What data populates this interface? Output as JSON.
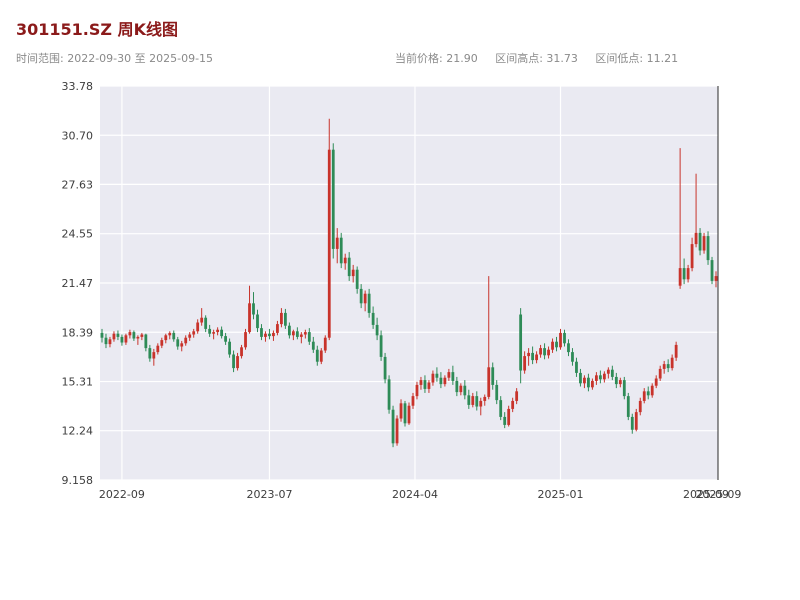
{
  "header": {
    "title": "301151.SZ 周K线图",
    "title_color": "#8b1a1a",
    "time_range": "时间范围: 2022-09-30 至 2025-09-15",
    "stats": [
      "当前价格: 21.90",
      "区间高点: 31.73",
      "区间低点: 11.21"
    ]
  },
  "chart_data": {
    "type": "candlestick",
    "symbol": "301151.SZ",
    "title": "301151.SZ 周K线图",
    "freq": "weekly",
    "start_date": "2022-09-30",
    "end_date": "2025-09-15",
    "current_price": 21.9,
    "range_high": 31.73,
    "range_low": 11.21,
    "up_color": "#c8332b",
    "down_color": "#2e8b57",
    "plot_bg": "#eaeaf2",
    "grid_color": "#ffffff",
    "spine_color": "#2b2b2b",
    "ylim": [
      9.158,
      33.78
    ],
    "yticks": [
      9.158,
      12.24,
      15.31,
      18.39,
      21.47,
      24.55,
      27.63,
      30.7,
      33.78
    ],
    "ytick_labels": [
      "9.158",
      "12.24",
      "15.31",
      "18.39",
      "21.47",
      "24.55",
      "27.63",
      "30.70",
      "33.78"
    ],
    "xticks": [
      {
        "pos": 5,
        "label": "2022-09",
        "grid": true
      },
      {
        "pos": 42,
        "label": "2023-07",
        "grid": true
      },
      {
        "pos": 78.5,
        "label": "2024-04",
        "grid": true
      },
      {
        "pos": 115,
        "label": "2025-01",
        "grid": true
      },
      {
        "pos": 151.5,
        "label": "2025-09",
        "grid": false
      },
      {
        "pos": 154.6,
        "label": "2025-09",
        "grid": false
      }
    ],
    "ohlc": [
      [
        18.35,
        18.6,
        17.75,
        18.05
      ],
      [
        18.05,
        18.3,
        17.4,
        17.65
      ],
      [
        17.65,
        18.1,
        17.45,
        17.95
      ],
      [
        17.95,
        18.45,
        17.8,
        18.3
      ],
      [
        18.3,
        18.5,
        17.9,
        18.1
      ],
      [
        18.1,
        18.25,
        17.55,
        17.75
      ],
      [
        17.75,
        18.3,
        17.6,
        18.2
      ],
      [
        18.2,
        18.55,
        18.0,
        18.4
      ],
      [
        18.4,
        18.5,
        17.85,
        18.0
      ],
      [
        18.0,
        18.2,
        17.6,
        18.1
      ],
      [
        18.1,
        18.35,
        17.9,
        18.25
      ],
      [
        18.25,
        18.3,
        17.2,
        17.4
      ],
      [
        17.4,
        17.6,
        16.55,
        16.75
      ],
      [
        16.75,
        17.35,
        16.3,
        17.15
      ],
      [
        17.15,
        17.7,
        17.0,
        17.55
      ],
      [
        17.55,
        18.05,
        17.4,
        17.9
      ],
      [
        17.9,
        18.3,
        17.7,
        18.2
      ],
      [
        18.2,
        18.45,
        17.95,
        18.35
      ],
      [
        18.35,
        18.5,
        17.8,
        17.95
      ],
      [
        17.95,
        18.1,
        17.3,
        17.5
      ],
      [
        17.5,
        17.85,
        17.2,
        17.7
      ],
      [
        17.7,
        18.2,
        17.55,
        18.05
      ],
      [
        18.05,
        18.4,
        17.85,
        18.25
      ],
      [
        18.25,
        18.6,
        18.05,
        18.45
      ],
      [
        18.45,
        19.2,
        18.3,
        19.0
      ],
      [
        19.0,
        19.9,
        18.8,
        19.3
      ],
      [
        19.3,
        19.45,
        18.4,
        18.6
      ],
      [
        18.6,
        18.85,
        18.1,
        18.3
      ],
      [
        18.3,
        18.55,
        17.95,
        18.4
      ],
      [
        18.4,
        18.7,
        18.2,
        18.55
      ],
      [
        18.55,
        18.75,
        18.0,
        18.15
      ],
      [
        18.15,
        18.35,
        17.6,
        17.8
      ],
      [
        17.8,
        18.0,
        16.8,
        17.0
      ],
      [
        17.0,
        17.25,
        15.9,
        16.15
      ],
      [
        16.15,
        17.1,
        16.0,
        16.9
      ],
      [
        16.9,
        17.6,
        16.75,
        17.45
      ],
      [
        17.45,
        18.6,
        17.3,
        18.4
      ],
      [
        18.4,
        21.3,
        18.3,
        20.2
      ],
      [
        20.2,
        20.9,
        19.2,
        19.5
      ],
      [
        19.5,
        19.8,
        18.4,
        18.65
      ],
      [
        18.65,
        18.9,
        17.9,
        18.1
      ],
      [
        18.1,
        18.45,
        17.8,
        18.3
      ],
      [
        18.3,
        18.6,
        17.95,
        18.15
      ],
      [
        18.15,
        18.5,
        17.85,
        18.35
      ],
      [
        18.35,
        19.1,
        18.2,
        18.9
      ],
      [
        18.9,
        19.9,
        18.7,
        19.6
      ],
      [
        19.6,
        19.85,
        18.6,
        18.8
      ],
      [
        18.8,
        19.0,
        18.0,
        18.2
      ],
      [
        18.2,
        18.55,
        17.9,
        18.45
      ],
      [
        18.45,
        18.7,
        17.95,
        18.1
      ],
      [
        18.1,
        18.4,
        17.7,
        18.25
      ],
      [
        18.25,
        18.55,
        18.0,
        18.4
      ],
      [
        18.4,
        18.65,
        17.6,
        17.8
      ],
      [
        17.8,
        18.1,
        17.1,
        17.3
      ],
      [
        17.3,
        17.55,
        16.3,
        16.55
      ],
      [
        16.55,
        17.4,
        16.4,
        17.25
      ],
      [
        17.25,
        18.2,
        17.1,
        18.05
      ],
      [
        18.05,
        31.73,
        17.9,
        29.8
      ],
      [
        29.8,
        30.2,
        23.0,
        23.6
      ],
      [
        23.6,
        24.9,
        22.7,
        24.3
      ],
      [
        24.3,
        24.6,
        22.4,
        22.7
      ],
      [
        22.7,
        23.3,
        22.3,
        23.05
      ],
      [
        23.05,
        23.4,
        21.6,
        21.9
      ],
      [
        21.9,
        22.6,
        21.5,
        22.3
      ],
      [
        22.3,
        22.5,
        20.8,
        21.1
      ],
      [
        21.1,
        21.4,
        19.9,
        20.2
      ],
      [
        20.2,
        21.0,
        19.7,
        20.8
      ],
      [
        20.8,
        21.1,
        19.3,
        19.6
      ],
      [
        19.6,
        20.0,
        18.6,
        18.85
      ],
      [
        18.85,
        19.3,
        17.9,
        18.2
      ],
      [
        18.2,
        18.5,
        16.6,
        16.85
      ],
      [
        16.85,
        17.1,
        15.2,
        15.45
      ],
      [
        15.45,
        15.7,
        13.3,
        13.55
      ],
      [
        13.55,
        13.8,
        11.21,
        11.45
      ],
      [
        11.45,
        13.2,
        11.3,
        13.0
      ],
      [
        13.0,
        14.2,
        12.8,
        13.95
      ],
      [
        13.95,
        14.1,
        12.5,
        12.7
      ],
      [
        12.7,
        14.0,
        12.6,
        13.8
      ],
      [
        13.8,
        14.6,
        13.6,
        14.4
      ],
      [
        14.4,
        15.3,
        14.2,
        15.1
      ],
      [
        15.1,
        15.6,
        14.8,
        15.4
      ],
      [
        15.4,
        15.7,
        14.6,
        14.85
      ],
      [
        14.85,
        15.4,
        14.6,
        15.25
      ],
      [
        15.25,
        16.0,
        15.05,
        15.8
      ],
      [
        15.8,
        16.2,
        15.3,
        15.55
      ],
      [
        15.55,
        15.9,
        14.9,
        15.15
      ],
      [
        15.15,
        15.7,
        15.0,
        15.55
      ],
      [
        15.55,
        16.1,
        15.35,
        15.9
      ],
      [
        15.9,
        16.3,
        15.1,
        15.35
      ],
      [
        15.35,
        15.6,
        14.4,
        14.65
      ],
      [
        14.65,
        15.2,
        14.45,
        15.05
      ],
      [
        15.05,
        15.4,
        14.2,
        14.45
      ],
      [
        14.45,
        14.8,
        13.6,
        13.85
      ],
      [
        13.85,
        14.6,
        13.7,
        14.4
      ],
      [
        14.4,
        14.7,
        13.5,
        13.75
      ],
      [
        13.75,
        14.3,
        13.2,
        14.1
      ],
      [
        14.1,
        14.5,
        13.8,
        14.35
      ],
      [
        14.35,
        21.9,
        14.2,
        16.2
      ],
      [
        16.2,
        16.5,
        14.8,
        15.1
      ],
      [
        15.1,
        15.4,
        13.9,
        14.15
      ],
      [
        14.15,
        14.4,
        12.9,
        13.1
      ],
      [
        13.1,
        13.4,
        12.4,
        12.6
      ],
      [
        12.6,
        13.8,
        12.5,
        13.6
      ],
      [
        13.6,
        14.3,
        13.4,
        14.1
      ],
      [
        14.1,
        14.9,
        13.9,
        14.7
      ],
      [
        19.5,
        19.9,
        15.2,
        16.0
      ],
      [
        16.0,
        17.2,
        15.8,
        16.9
      ],
      [
        16.9,
        17.4,
        16.3,
        17.1
      ],
      [
        17.1,
        17.5,
        16.4,
        16.65
      ],
      [
        16.65,
        17.2,
        16.45,
        17.0
      ],
      [
        17.0,
        17.6,
        16.8,
        17.4
      ],
      [
        17.4,
        17.7,
        16.7,
        16.95
      ],
      [
        16.95,
        17.5,
        16.75,
        17.3
      ],
      [
        17.3,
        18.0,
        17.1,
        17.8
      ],
      [
        17.8,
        18.1,
        17.2,
        17.45
      ],
      [
        17.45,
        18.6,
        17.3,
        18.35
      ],
      [
        18.35,
        18.55,
        17.5,
        17.7
      ],
      [
        17.7,
        17.95,
        16.9,
        17.15
      ],
      [
        17.15,
        17.4,
        16.3,
        16.55
      ],
      [
        16.55,
        16.8,
        15.6,
        15.85
      ],
      [
        15.85,
        16.1,
        15.0,
        15.2
      ],
      [
        15.2,
        15.7,
        14.9,
        15.55
      ],
      [
        15.55,
        15.8,
        14.7,
        14.95
      ],
      [
        14.95,
        15.5,
        14.8,
        15.35
      ],
      [
        15.35,
        15.9,
        15.1,
        15.7
      ],
      [
        15.7,
        16.0,
        15.2,
        15.45
      ],
      [
        15.45,
        15.95,
        15.25,
        15.8
      ],
      [
        15.8,
        16.2,
        15.5,
        16.05
      ],
      [
        16.05,
        16.3,
        15.4,
        15.6
      ],
      [
        15.6,
        15.85,
        14.9,
        15.15
      ],
      [
        15.15,
        15.55,
        14.95,
        15.4
      ],
      [
        15.4,
        15.6,
        14.2,
        14.4
      ],
      [
        14.4,
        14.6,
        12.9,
        13.1
      ],
      [
        13.1,
        13.3,
        12.05,
        12.3
      ],
      [
        12.3,
        13.6,
        12.2,
        13.4
      ],
      [
        13.4,
        14.3,
        13.2,
        14.1
      ],
      [
        14.1,
        14.9,
        13.95,
        14.7
      ],
      [
        14.7,
        15.0,
        14.2,
        14.45
      ],
      [
        14.45,
        15.2,
        14.3,
        15.05
      ],
      [
        15.05,
        15.7,
        14.9,
        15.5
      ],
      [
        15.5,
        16.3,
        15.35,
        16.1
      ],
      [
        16.1,
        16.6,
        15.8,
        16.4
      ],
      [
        16.4,
        16.7,
        15.9,
        16.15
      ],
      [
        16.15,
        17.0,
        16.0,
        16.8
      ],
      [
        16.8,
        17.8,
        16.6,
        17.6
      ],
      [
        21.3,
        29.9,
        21.1,
        22.4
      ],
      [
        22.4,
        23.0,
        21.4,
        21.7
      ],
      [
        21.7,
        22.6,
        21.5,
        22.4
      ],
      [
        22.4,
        24.3,
        22.2,
        23.9
      ],
      [
        23.9,
        28.3,
        23.7,
        24.6
      ],
      [
        24.6,
        24.9,
        23.2,
        23.5
      ],
      [
        23.5,
        24.6,
        23.3,
        24.4
      ],
      [
        24.4,
        24.7,
        22.6,
        22.9
      ],
      [
        22.9,
        23.1,
        21.4,
        21.6
      ],
      [
        21.6,
        22.2,
        21.2,
        21.9
      ]
    ]
  }
}
